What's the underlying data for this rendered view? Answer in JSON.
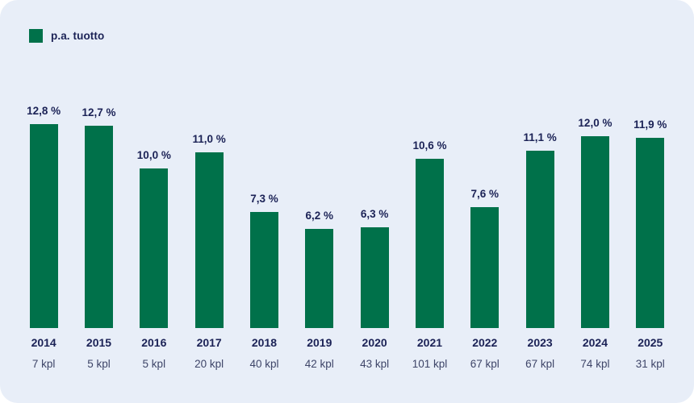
{
  "card": {
    "background": "#E8EEF8"
  },
  "colors": {
    "bar": "#00714A",
    "text_dark": "#1B2256",
    "text_secondary": "#3E4568"
  },
  "legend": {
    "label": "p.a. tuotto",
    "swatch_color": "#00714A",
    "position": "top-left"
  },
  "chart_data": {
    "type": "bar",
    "title": "",
    "xlabel": "",
    "ylabel": "",
    "categories": [
      "2014",
      "2015",
      "2016",
      "2017",
      "2018",
      "2019",
      "2020",
      "2021",
      "2022",
      "2023",
      "2024",
      "2025"
    ],
    "series": [
      {
        "name": "p.a. tuotto",
        "values": [
          12.8,
          12.7,
          10.0,
          11.0,
          7.3,
          6.2,
          6.3,
          10.6,
          7.6,
          11.1,
          12.0,
          11.9
        ]
      }
    ],
    "value_labels": [
      "12,8 %",
      "12,7 %",
      "10,0 %",
      "11,0 %",
      "7,3 %",
      "6,2 %",
      "6,3 %",
      "10,6 %",
      "7,6 %",
      "11,1 %",
      "12,0 %",
      "11,9 %"
    ],
    "count_labels": [
      "7 kpl",
      "5 kpl",
      "5 kpl",
      "20 kpl",
      "40 kpl",
      "42 kpl",
      "43 kpl",
      "101 kpl",
      "67 kpl",
      "67 kpl",
      "74 kpl",
      "31 kpl"
    ],
    "ylim": [
      0,
      13
    ],
    "grid": false,
    "legend_position": "top-left"
  }
}
